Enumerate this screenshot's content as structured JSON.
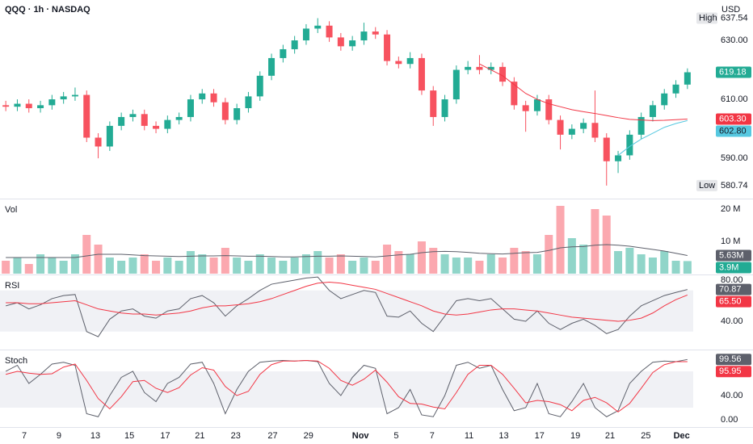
{
  "chart_data": [
    {
      "type": "candlestick",
      "title": "QQQ · 1h · NASDAQ",
      "currency": "USD",
      "open": [
        608,
        607.5,
        608.5,
        607,
        608,
        610,
        611,
        611.5,
        597,
        594,
        601,
        604,
        605,
        601,
        600,
        603,
        604,
        610,
        612,
        609,
        603,
        607,
        611,
        618,
        624,
        627,
        630,
        634,
        635,
        631,
        628,
        630,
        633,
        632,
        623,
        622,
        624,
        613,
        604,
        610,
        620,
        621,
        620,
        621,
        616,
        608,
        606,
        610,
        603,
        598,
        600,
        602,
        597,
        589,
        591,
        598,
        604,
        608,
        612,
        615
      ],
      "high": [
        609.5,
        610,
        610,
        609.5,
        611.5,
        612.5,
        614,
        613,
        598.5,
        602.5,
        605.5,
        606.5,
        606.5,
        602.5,
        604.5,
        605.5,
        611.5,
        613.5,
        613.5,
        610.5,
        608.5,
        612.5,
        619.5,
        625.5,
        628.5,
        631.5,
        635.5,
        637.54,
        636.5,
        632.5,
        631.5,
        636,
        634.5,
        633.5,
        624.5,
        626,
        625.5,
        614.5,
        611.5,
        621.5,
        623,
        625,
        622.5,
        622.5,
        617.5,
        609.5,
        611.5,
        611.5,
        604.5,
        601.5,
        603.5,
        613,
        598.5,
        592.5,
        599.5,
        605.5,
        609.5,
        613.5,
        616.5,
        620.5
      ],
      "low": [
        606,
        606,
        605.5,
        605.5,
        606.5,
        608.5,
        609.5,
        595.5,
        590,
        592.5,
        599.5,
        602.5,
        599.5,
        598.5,
        598.5,
        601.5,
        602.5,
        608.5,
        607.5,
        601.5,
        601.5,
        605.5,
        609.5,
        616.5,
        622.5,
        625.5,
        628.5,
        632.5,
        629.5,
        626.5,
        626.5,
        628.5,
        630.5,
        621.5,
        620.5,
        620.5,
        611.5,
        601,
        602.5,
        608.5,
        618.5,
        618.5,
        618.5,
        614.5,
        606.5,
        599,
        604.5,
        601.5,
        593,
        596.5,
        598.5,
        595.5,
        580.74,
        585,
        589.5,
        596.5,
        602.5,
        606.5,
        610.5,
        613.5
      ],
      "close": [
        607.5,
        608.5,
        607,
        608,
        610,
        611,
        611.5,
        597,
        594,
        601,
        604,
        605,
        601,
        600,
        603,
        604,
        610,
        612,
        609,
        603,
        607,
        611,
        618,
        624,
        627,
        630,
        634,
        635,
        631,
        628,
        630,
        633,
        632,
        623,
        622,
        624,
        613,
        604,
        610,
        620,
        621,
        620,
        621,
        616,
        608,
        606,
        610,
        603,
        598,
        600,
        602,
        597,
        589,
        591,
        598,
        604,
        608,
        612,
        615,
        619.18
      ],
      "up_color": "#22ab94",
      "down_color": "#f7525f",
      "series": [
        {
          "color": "#f23645",
          "last_label": "603.30",
          "values": [
            null,
            null,
            null,
            null,
            null,
            null,
            null,
            null,
            null,
            null,
            null,
            null,
            null,
            null,
            null,
            null,
            null,
            null,
            null,
            null,
            null,
            null,
            null,
            null,
            null,
            null,
            null,
            null,
            null,
            null,
            null,
            null,
            null,
            null,
            null,
            null,
            null,
            null,
            null,
            null,
            null,
            622,
            620,
            618,
            615,
            612,
            610,
            608.5,
            607.5,
            606.5,
            605.8,
            605.2,
            604.5,
            603.8,
            603.2,
            603,
            602.8,
            602.9,
            603.1,
            603.3
          ]
        },
        {
          "color": "#56c8e0",
          "last_label": "602.80",
          "values": [
            null,
            null,
            null,
            null,
            null,
            null,
            null,
            null,
            null,
            null,
            null,
            null,
            null,
            null,
            null,
            null,
            null,
            null,
            null,
            null,
            null,
            null,
            null,
            null,
            null,
            null,
            null,
            null,
            null,
            null,
            null,
            null,
            null,
            null,
            null,
            null,
            null,
            null,
            null,
            null,
            null,
            null,
            null,
            null,
            null,
            null,
            null,
            null,
            null,
            null,
            null,
            null,
            null,
            591,
            594,
            596.5,
            598.5,
            600.5,
            601.8,
            602.8
          ]
        }
      ],
      "high_marker": {
        "text": "High",
        "value": 637.54
      },
      "low_marker": {
        "text": "Low",
        "value": 580.74
      },
      "ylim": [
        576.6,
        643.7
      ],
      "yticks": [
        {
          "value": 630,
          "label": "630.00"
        },
        {
          "value": 610,
          "label": "610.00"
        },
        {
          "value": 590,
          "label": "590.00"
        }
      ]
    },
    {
      "type": "bar",
      "title": "Vol",
      "values": [
        4,
        5,
        3,
        6,
        5,
        4,
        6,
        12,
        9,
        5,
        4,
        5,
        6,
        4,
        5,
        4,
        7,
        6,
        5,
        8,
        5,
        4,
        6,
        5,
        4,
        5,
        6,
        7,
        5,
        6,
        4,
        5,
        4,
        9,
        7,
        6,
        10,
        8,
        6,
        5,
        5,
        4,
        6,
        5,
        8,
        7,
        6,
        12,
        21,
        11,
        9,
        20,
        18,
        7,
        8,
        6,
        5,
        7,
        4,
        3.9
      ],
      "last_label": "3.9M",
      "series": [
        {
          "color": "#5d606b",
          "last_label": "5.63M",
          "values": [
            5,
            5,
            5,
            5,
            5,
            5,
            5,
            5.5,
            6,
            6,
            6,
            5.8,
            5.6,
            5.5,
            5.4,
            5.3,
            5.4,
            5.5,
            5.5,
            5.6,
            5.5,
            5.4,
            5.4,
            5.3,
            5.2,
            5.2,
            5.3,
            5.4,
            5.4,
            5.5,
            5.4,
            5.3,
            5.2,
            5.5,
            5.8,
            6,
            6.5,
            6.8,
            6.9,
            6.8,
            6.6,
            6.3,
            6.2,
            6.1,
            6.3,
            6.5,
            6.6,
            7.2,
            8,
            8.3,
            8.4,
            8.8,
            9,
            8.8,
            8.5,
            8,
            7.5,
            7,
            6.3,
            5.63
          ]
        }
      ],
      "ylim": [
        0,
        22.75
      ],
      "yticks": [
        {
          "value": 20,
          "label": "20 M"
        },
        {
          "value": 10,
          "label": "10 M"
        }
      ]
    },
    {
      "type": "line",
      "title": "RSI",
      "series": [
        {
          "color": "#5d606b",
          "last_label": "70.87",
          "values": [
            55,
            58,
            52,
            56,
            62,
            65,
            66,
            30,
            25,
            42,
            50,
            52,
            45,
            43,
            50,
            52,
            62,
            65,
            58,
            45,
            55,
            62,
            70,
            76,
            78,
            80,
            82,
            83,
            70,
            62,
            66,
            70,
            68,
            45,
            44,
            50,
            38,
            30,
            45,
            60,
            62,
            60,
            62,
            52,
            42,
            40,
            50,
            38,
            32,
            38,
            42,
            36,
            28,
            32,
            45,
            55,
            60,
            65,
            68,
            70.87
          ]
        },
        {
          "color": "#f23645",
          "last_label": "65.50",
          "values": [
            58,
            58,
            57,
            57,
            58,
            59,
            60,
            56,
            52,
            50,
            48,
            47,
            47,
            46,
            47,
            48,
            50,
            53,
            55,
            55,
            56,
            57,
            59,
            62,
            66,
            70,
            74,
            77,
            78,
            77,
            75,
            73,
            71,
            67,
            63,
            59,
            55,
            50,
            47,
            46,
            47,
            49,
            51,
            52,
            52,
            51,
            50,
            48,
            46,
            44,
            43,
            42,
            41,
            40,
            41,
            43,
            48,
            55,
            61,
            65.5
          ]
        }
      ],
      "band": [
        30,
        70
      ],
      "ylim": [
        13.3,
        83.9
      ],
      "yticks": [
        {
          "value": 80,
          "label": "80.00"
        },
        {
          "value": 40,
          "label": "40.00"
        }
      ]
    },
    {
      "type": "line",
      "title": "Stoch",
      "series": [
        {
          "color": "#5d606b",
          "last_label": "99.56",
          "values": [
            80,
            90,
            60,
            75,
            92,
            95,
            90,
            10,
            5,
            40,
            70,
            80,
            45,
            30,
            60,
            70,
            92,
            95,
            60,
            10,
            50,
            80,
            95,
            97,
            98,
            97,
            98,
            96,
            60,
            40,
            70,
            90,
            85,
            10,
            20,
            50,
            8,
            5,
            40,
            90,
            95,
            85,
            90,
            50,
            15,
            20,
            60,
            10,
            5,
            30,
            60,
            20,
            5,
            15,
            60,
            80,
            95,
            97,
            96,
            99.56
          ]
        },
        {
          "color": "#f23645",
          "last_label": "95.95",
          "values": [
            75,
            80,
            77,
            75,
            76,
            87,
            92,
            65,
            35,
            18,
            38,
            63,
            65,
            52,
            45,
            53,
            74,
            86,
            82,
            55,
            40,
            47,
            75,
            91,
            97,
            97,
            98,
            97,
            85,
            65,
            57,
            67,
            82,
            62,
            38,
            27,
            26,
            21,
            18,
            45,
            75,
            90,
            90,
            75,
            52,
            28,
            32,
            30,
            25,
            15,
            32,
            37,
            28,
            13,
            27,
            52,
            78,
            91,
            96,
            95.95
          ]
        }
      ],
      "band": [
        20,
        80
      ],
      "ylim": [
        -10.7,
        113.3
      ],
      "yticks": [
        {
          "value": 40,
          "label": "40.00"
        },
        {
          "value": 0,
          "label": "0.00"
        }
      ],
      "xlim": [
        -0.5,
        59.5
      ],
      "xticks": [
        {
          "value": 1.6,
          "label": "7"
        },
        {
          "value": 4.6,
          "label": "9"
        },
        {
          "value": 7.75,
          "label": "13"
        },
        {
          "value": 10.7,
          "label": "15"
        },
        {
          "value": 13.8,
          "label": "17"
        },
        {
          "value": 16.8,
          "label": "21"
        },
        {
          "value": 19.9,
          "label": "23"
        },
        {
          "value": 23.1,
          "label": "27"
        },
        {
          "value": 26.2,
          "label": "29"
        },
        {
          "value": 30.7,
          "label": "Nov"
        },
        {
          "value": 33.8,
          "label": "5"
        },
        {
          "value": 36.9,
          "label": "7"
        },
        {
          "value": 40.1,
          "label": "11"
        },
        {
          "value": 43.1,
          "label": "13"
        },
        {
          "value": 46.2,
          "label": "17"
        },
        {
          "value": 49.3,
          "label": "19"
        },
        {
          "value": 52.3,
          "label": "21"
        },
        {
          "value": 55.4,
          "label": "25"
        },
        {
          "value": 58.5,
          "label": "Dec"
        }
      ]
    }
  ]
}
